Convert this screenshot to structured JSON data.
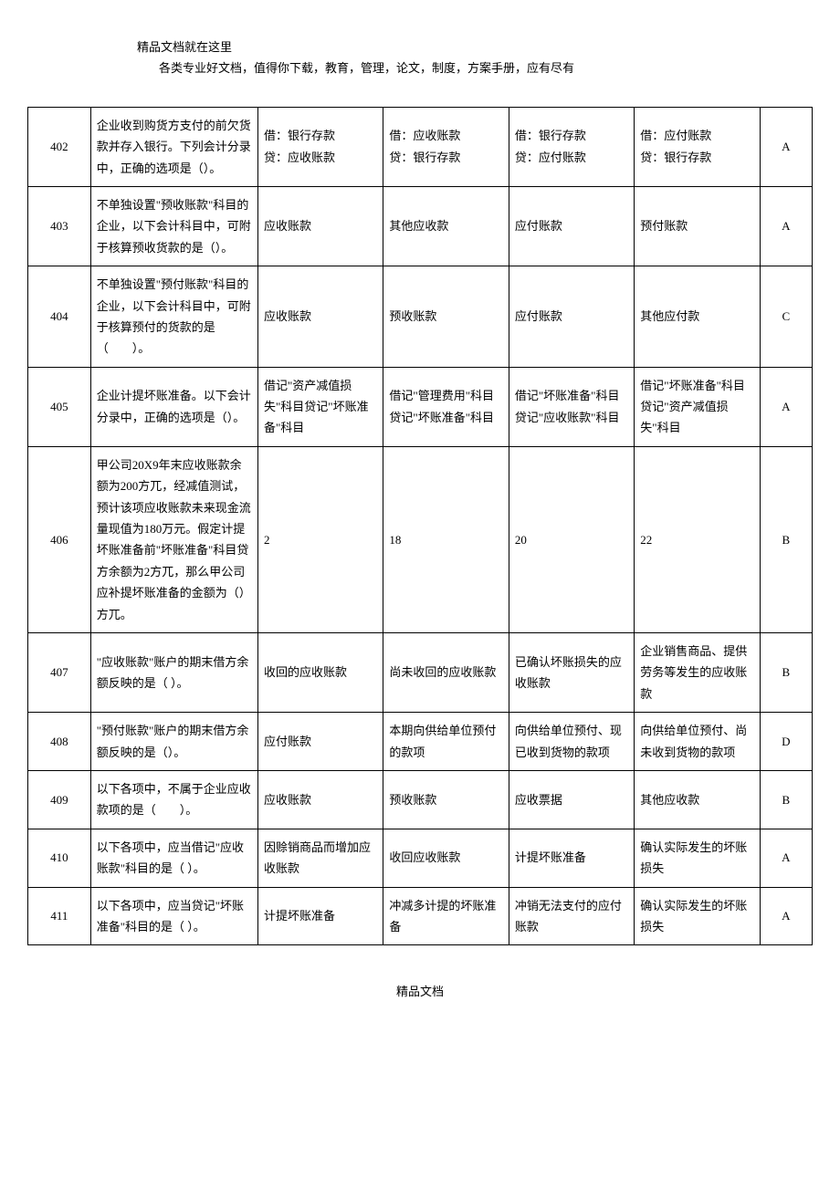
{
  "header": {
    "line1": "精品文档就在这里",
    "line2": "各类专业好文档，值得你下载，教育，管理，论文，制度，方案手册，应有尽有"
  },
  "footer": "精品文档",
  "rows": [
    {
      "num": "402",
      "question": "企业收到购货方支付的前欠货款并存入银行。下列会计分录中，正确的选项是（）。",
      "optA": "借：银行存款\n贷：应收账款",
      "optB": "借：应收账款\n贷：银行存款",
      "optC": "借：银行存款\n贷：应付账款",
      "optD": "借：应付账款\n贷：银行存款",
      "answer": "A"
    },
    {
      "num": "403",
      "question": "不单独设置\"预收账款\"科目的企业，以下会计科目中，可附于核算预收货款的是（）。",
      "optA": "应收账款",
      "optB": "其他应收款",
      "optC": "应付账款",
      "optD": "预付账款",
      "answer": "A"
    },
    {
      "num": "404",
      "question": "不单独设置\"预付账款\"科目的企业，以下会计科目中，可附于核算预付的货款的是（　　）。",
      "optA": "应收账款",
      "optB": "预收账款",
      "optC": "应付账款",
      "optD": "其他应付款",
      "answer": "C"
    },
    {
      "num": "405",
      "question": "企业计提坏账准备。以下会计分录中，正确的选项是（）。",
      "optA": "借记\"资产减值损失\"科目贷记\"坏账准备\"科目",
      "optB": "借记\"管理费用\"科目贷记\"坏账准备\"科目",
      "optC": "借记\"坏账准备\"科目贷记\"应收账款\"科目",
      "optD": "借记\"坏账准备\"科目贷记\"资产减值损失\"科目",
      "answer": "A"
    },
    {
      "num": "406",
      "question": "甲公司20X9年末应收账款余额为200方兀，经减值测试，预计该项应收账款未来现金流量现值为180万元。假定计提坏账准备前\"坏账准备\"科目贷方余额为2方兀，那么甲公司应补提坏账准备的金额为（）方兀。",
      "optA": "2",
      "optB": "18",
      "optC": "20",
      "optD": "22",
      "answer": "B"
    },
    {
      "num": "407",
      "question": "\"应收账款\"账户的期末借方余额反映的是（ ）。",
      "optA": "收回的应收账款",
      "optB": "尚未收回的应收账款",
      "optC": "已确认坏账损失的应收账款",
      "optD": "企业销售商品、提供劳务等发生的应收账款",
      "answer": "B"
    },
    {
      "num": "408",
      "question": "\"预付账款\"账户的期末借方余额反映的是（）。",
      "optA": "应付账款",
      "optB": "本期向供给单位预付的款项",
      "optC": "向供给单位预付、现已收到货物的款项",
      "optD": "向供给单位预付、尚未收到货物的款项",
      "answer": "D"
    },
    {
      "num": "409",
      "question": "以下各项中，不属于企业应收款项的是（　　）。",
      "optA": "应收账款",
      "optB": "预收账款",
      "optC": "应收票据",
      "optD": "其他应收款",
      "answer": "B"
    },
    {
      "num": "410",
      "question": "以下各项中，应当借记\"应收账款\"科目的是（ ）。",
      "optA": "因赊销商品而增加应收账款",
      "optB": "收回应收账款",
      "optC": "计提坏账准备",
      "optD": "确认实际发生的坏账损失",
      "answer": "A"
    },
    {
      "num": "411",
      "question": "以下各项中，应当贷记\"坏账准备\"科目的是（ ）。",
      "optA": "计提坏账准备",
      "optB": "冲减多计提的坏账准备",
      "optC": "冲销无法支付的应付账款",
      "optD": "确认实际发生的坏账损失",
      "answer": "A"
    }
  ]
}
